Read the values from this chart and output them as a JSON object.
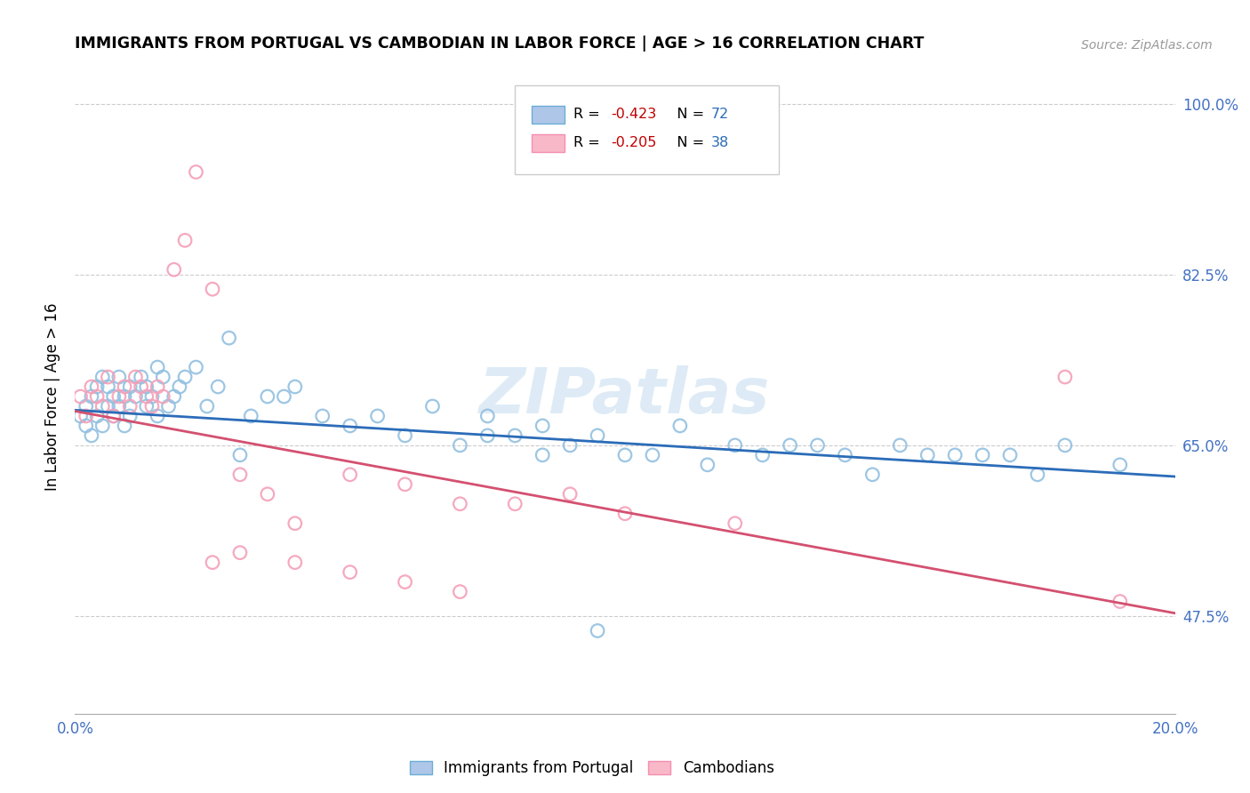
{
  "title": "IMMIGRANTS FROM PORTUGAL VS CAMBODIAN IN LABOR FORCE | AGE > 16 CORRELATION CHART",
  "source": "Source: ZipAtlas.com",
  "ylabel": "In Labor Force | Age > 16",
  "xlim": [
    0.0,
    0.2
  ],
  "ylim": [
    0.375,
    1.025
  ],
  "yticks": [
    0.475,
    0.65,
    0.825,
    1.0
  ],
  "ytick_labels": [
    "47.5%",
    "65.0%",
    "82.5%",
    "100.0%"
  ],
  "xticks": [
    0.0,
    0.05,
    0.1,
    0.15,
    0.2
  ],
  "xtick_labels": [
    "0.0%",
    "",
    "",
    "",
    "20.0%"
  ],
  "watermark": "ZIPatlas",
  "blue_scatter_color": "#92c0e0",
  "pink_scatter_color": "#f4a0b8",
  "blue_line_color": "#2b6cb8",
  "pink_line_color": "#d45070",
  "blue_line_x": [
    0.0,
    0.2
  ],
  "blue_line_y": [
    0.686,
    0.618
  ],
  "pink_line_x": [
    0.0,
    0.2
  ],
  "pink_line_y": [
    0.685,
    0.478
  ],
  "legend1_label_r": "R = ",
  "legend1_r_val": "-0.423",
  "legend1_label_n": "   N = ",
  "legend1_n_val": "72",
  "legend2_label_r": "R = ",
  "legend2_r_val": "-0.205",
  "legend2_label_n": "   N = ",
  "legend2_n_val": "38",
  "portugal_x": [
    0.001,
    0.002,
    0.002,
    0.003,
    0.003,
    0.004,
    0.004,
    0.005,
    0.005,
    0.006,
    0.006,
    0.007,
    0.007,
    0.008,
    0.008,
    0.009,
    0.009,
    0.01,
    0.01,
    0.011,
    0.012,
    0.013,
    0.013,
    0.014,
    0.015,
    0.015,
    0.016,
    0.017,
    0.018,
    0.019,
    0.02,
    0.022,
    0.024,
    0.026,
    0.028,
    0.03,
    0.032,
    0.035,
    0.038,
    0.04,
    0.045,
    0.05,
    0.055,
    0.06,
    0.065,
    0.07,
    0.075,
    0.08,
    0.085,
    0.09,
    0.095,
    0.1,
    0.11,
    0.12,
    0.13,
    0.14,
    0.15,
    0.16,
    0.17,
    0.18,
    0.19,
    0.175,
    0.165,
    0.155,
    0.145,
    0.135,
    0.125,
    0.115,
    0.105,
    0.095,
    0.085,
    0.075
  ],
  "portugal_y": [
    0.68,
    0.69,
    0.67,
    0.7,
    0.66,
    0.71,
    0.68,
    0.72,
    0.67,
    0.69,
    0.71,
    0.7,
    0.68,
    0.72,
    0.69,
    0.7,
    0.67,
    0.71,
    0.68,
    0.7,
    0.72,
    0.69,
    0.71,
    0.7,
    0.73,
    0.68,
    0.72,
    0.69,
    0.7,
    0.71,
    0.72,
    0.73,
    0.69,
    0.71,
    0.76,
    0.64,
    0.68,
    0.7,
    0.7,
    0.71,
    0.68,
    0.67,
    0.68,
    0.66,
    0.69,
    0.65,
    0.68,
    0.66,
    0.67,
    0.65,
    0.66,
    0.64,
    0.67,
    0.65,
    0.65,
    0.64,
    0.65,
    0.64,
    0.64,
    0.65,
    0.63,
    0.62,
    0.64,
    0.64,
    0.62,
    0.65,
    0.64,
    0.63,
    0.64,
    0.46,
    0.64,
    0.66
  ],
  "cambodian_x": [
    0.001,
    0.002,
    0.003,
    0.004,
    0.005,
    0.006,
    0.007,
    0.008,
    0.009,
    0.01,
    0.011,
    0.012,
    0.013,
    0.014,
    0.015,
    0.016,
    0.018,
    0.02,
    0.022,
    0.025,
    0.03,
    0.035,
    0.04,
    0.05,
    0.06,
    0.07,
    0.08,
    0.09,
    0.1,
    0.12,
    0.025,
    0.03,
    0.04,
    0.05,
    0.06,
    0.07,
    0.18,
    0.19
  ],
  "cambodian_y": [
    0.7,
    0.68,
    0.71,
    0.7,
    0.69,
    0.72,
    0.68,
    0.7,
    0.71,
    0.69,
    0.72,
    0.71,
    0.7,
    0.69,
    0.71,
    0.7,
    0.83,
    0.86,
    0.93,
    0.81,
    0.62,
    0.6,
    0.57,
    0.62,
    0.61,
    0.59,
    0.59,
    0.6,
    0.58,
    0.57,
    0.53,
    0.54,
    0.53,
    0.52,
    0.51,
    0.5,
    0.72,
    0.49
  ]
}
